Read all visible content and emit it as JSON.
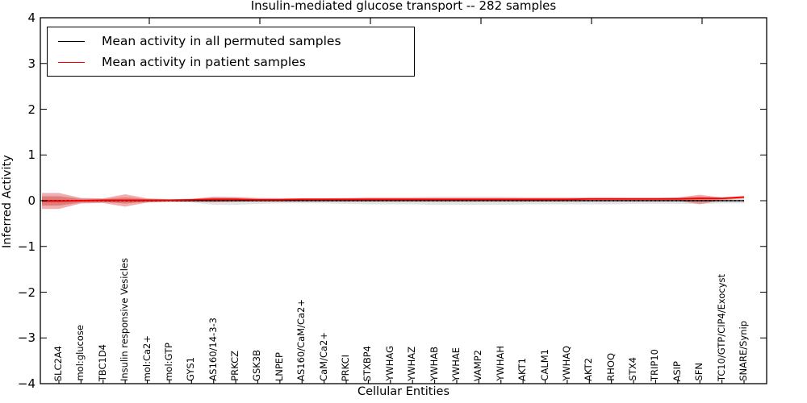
{
  "chart_data": {
    "type": "line",
    "title": "Insulin-mediated glucose transport -- 282 samples",
    "xlabel": "Cellular Entities",
    "ylabel": "Inferred Activity",
    "ylim": [
      -4,
      4
    ],
    "y_ticks": [
      4,
      3,
      2,
      1,
      0,
      -1,
      -2,
      -3,
      -4
    ],
    "y_tick_labels": [
      "4",
      "3",
      "2",
      "1",
      "0",
      "−1",
      "−2",
      "−3",
      "−4"
    ],
    "grid": false,
    "zero_line": {
      "value": 0,
      "style": "dotted",
      "color": "#000000"
    },
    "legend_position": "upper left",
    "legend": {
      "entries": [
        {
          "label": "Mean activity in all permuted samples",
          "color": "#000000"
        },
        {
          "label": "Mean activity in patient samples",
          "color": "#ff0000"
        }
      ]
    },
    "categories": [
      "SLC2A4",
      "mol:glucose",
      "TBC1D4",
      "Insulin responsive Vesicles",
      "mol:Ca2+",
      "mol:GTP",
      "GYS1",
      "AS160/14-3-3",
      "PRKCZ",
      "GSK3B",
      "LNPEP",
      "AS160/CaM/Ca2+",
      "CaM/Ca2+",
      "PRKCI",
      "STXBP4",
      "YWHAG",
      "YWHAZ",
      "YWHAB",
      "YWHAE",
      "VAMP2",
      "YWHAH",
      "AKT1",
      "CALM1",
      "YWHAQ",
      "AKT2",
      "RHOQ",
      "STX4",
      "TRIP10",
      "ASIP",
      "SFN",
      "TC10/GTP/CIP4/Exocyst",
      "SNARE/Synip"
    ],
    "series": [
      {
        "name": "Mean activity in all permuted samples",
        "color": "#000000",
        "values": [
          0,
          0,
          0,
          0,
          0,
          0,
          0,
          0,
          0,
          0,
          0,
          0,
          0,
          0,
          0,
          0,
          0,
          0,
          0,
          0,
          0,
          0,
          0,
          0,
          0,
          0,
          0,
          0,
          0,
          0,
          0,
          0
        ]
      },
      {
        "name": "Mean activity in patient samples",
        "color": "#ff0000",
        "values": [
          -0.01,
          0,
          0.01,
          0.01,
          0.01,
          0.01,
          0.02,
          0.03,
          0.03,
          0.02,
          0.02,
          0.03,
          0.03,
          0.03,
          0.03,
          0.03,
          0.03,
          0.03,
          0.03,
          0.03,
          0.03,
          0.03,
          0.03,
          0.03,
          0.04,
          0.04,
          0.04,
          0.04,
          0.04,
          0.05,
          0.05,
          0.08
        ]
      }
    ],
    "bands": [
      {
        "name": "permuted-samples-envelope",
        "color": "rgba(128,128,128,0.22)",
        "upper": [
          0.11,
          0.05,
          0.04,
          0.05,
          0.04,
          0.03,
          0.04,
          0.09,
          0.09,
          0.07,
          0.06,
          0.06,
          0.06,
          0.07,
          0.08,
          0.08,
          0.08,
          0.09,
          0.09,
          0.09,
          0.09,
          0.08,
          0.08,
          0.08,
          0.08,
          0.08,
          0.07,
          0.07,
          0.07,
          0.07,
          0.06,
          0.06
        ],
        "lower": [
          -0.11,
          -0.05,
          -0.04,
          -0.05,
          -0.04,
          -0.03,
          -0.04,
          -0.09,
          -0.09,
          -0.07,
          -0.06,
          -0.06,
          -0.06,
          -0.07,
          -0.08,
          -0.08,
          -0.08,
          -0.09,
          -0.09,
          -0.09,
          -0.09,
          -0.08,
          -0.08,
          -0.08,
          -0.08,
          -0.08,
          -0.07,
          -0.07,
          -0.07,
          -0.07,
          -0.06,
          -0.06
        ]
      },
      {
        "name": "patient-samples-envelope",
        "color": "rgba(222,45,45,0.38)",
        "upper": [
          0.17,
          0.06,
          0.05,
          0.14,
          0.05,
          0.03,
          0.04,
          0.08,
          0.07,
          0.05,
          0.05,
          0.05,
          0.05,
          0.05,
          0.06,
          0.06,
          0.06,
          0.06,
          0.06,
          0.06,
          0.06,
          0.06,
          0.06,
          0.06,
          0.06,
          0.06,
          0.06,
          0.06,
          0.07,
          0.13,
          0.07,
          0.1
        ],
        "lower": [
          -0.18,
          -0.06,
          -0.05,
          -0.13,
          -0.04,
          -0.02,
          -0.02,
          -0.03,
          -0.02,
          -0.01,
          -0.01,
          -0.01,
          -0.01,
          -0.01,
          -0.01,
          -0.01,
          -0.01,
          -0.01,
          -0.01,
          -0.01,
          -0.01,
          -0.01,
          -0.01,
          0,
          0,
          0,
          0,
          0,
          0,
          -0.08,
          0.01,
          0.05
        ]
      }
    ]
  }
}
